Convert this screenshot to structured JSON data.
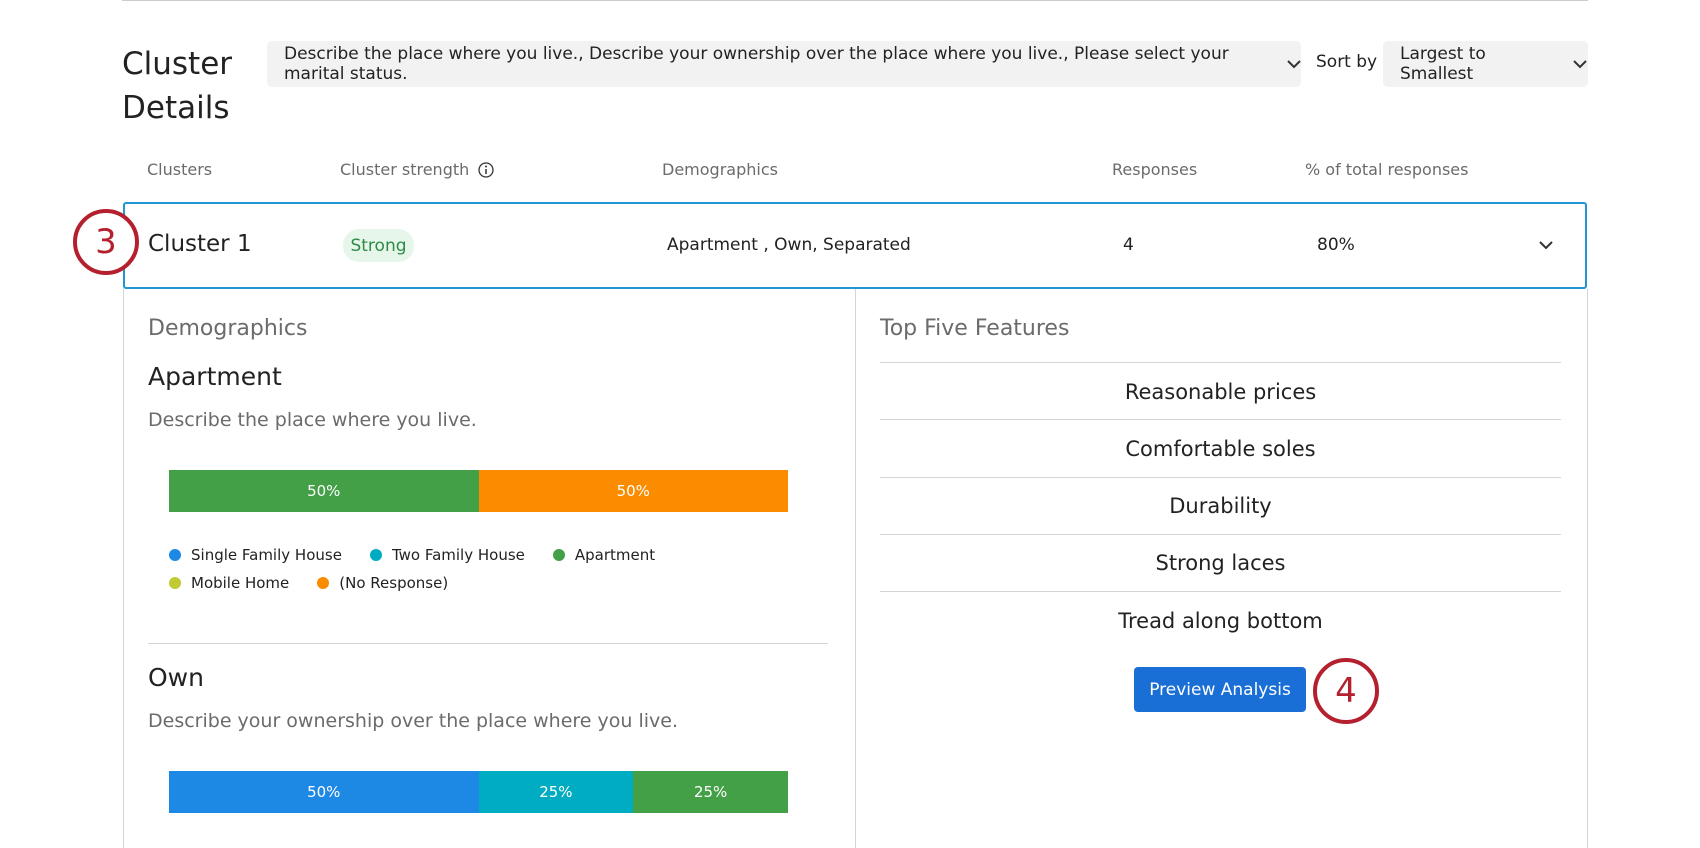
{
  "header": {
    "title": "Cluster Details",
    "question_filter": "Describe the place where you live., Describe your ownership over the place where you live., Please select your marital status.",
    "sort_label": "Sort by",
    "sort_value": "Largest to Smallest"
  },
  "table": {
    "columns": [
      "Clusters",
      "Cluster strength",
      "Demographics",
      "Responses",
      "% of total responses"
    ],
    "rows": [
      {
        "cluster": "Cluster 1",
        "strength": "Strong",
        "demographics": "Apartment , Own, Separated",
        "responses": 4,
        "percent": "80%"
      }
    ]
  },
  "callouts": [
    "3",
    "4"
  ],
  "details": {
    "title": "Demographics",
    "groups": [
      {
        "name": "Apartment",
        "question": "Describe the place where you live.",
        "segments": [
          {
            "value": 50,
            "label": "50%",
            "color": "#43a047"
          },
          {
            "value": 50,
            "label": "50%",
            "color": "#fb8c00"
          }
        ],
        "legend": [
          {
            "name": "Single Family House",
            "color": "#1e88e5"
          },
          {
            "name": "Two Family House",
            "color": "#00acc1"
          },
          {
            "name": "Apartment",
            "color": "#43a047"
          },
          {
            "name": "Mobile Home",
            "color": "#c0ca33"
          },
          {
            "name": "(No Response)",
            "color": "#fb8c00"
          }
        ]
      },
      {
        "name": "Own",
        "question": "Describe your ownership over the place where you live.",
        "segments": [
          {
            "value": 50,
            "label": "50%",
            "color": "#1e88e5"
          },
          {
            "value": 25,
            "label": "25%",
            "color": "#00acc1"
          },
          {
            "value": 25,
            "label": "25%",
            "color": "#43a047"
          }
        ]
      }
    ]
  },
  "features": {
    "title": "Top Five Features",
    "items": [
      "Reasonable prices",
      "Comfortable soles",
      "Durability",
      "Strong laces",
      "Tread along bottom"
    ],
    "button": "Preview Analysis"
  }
}
